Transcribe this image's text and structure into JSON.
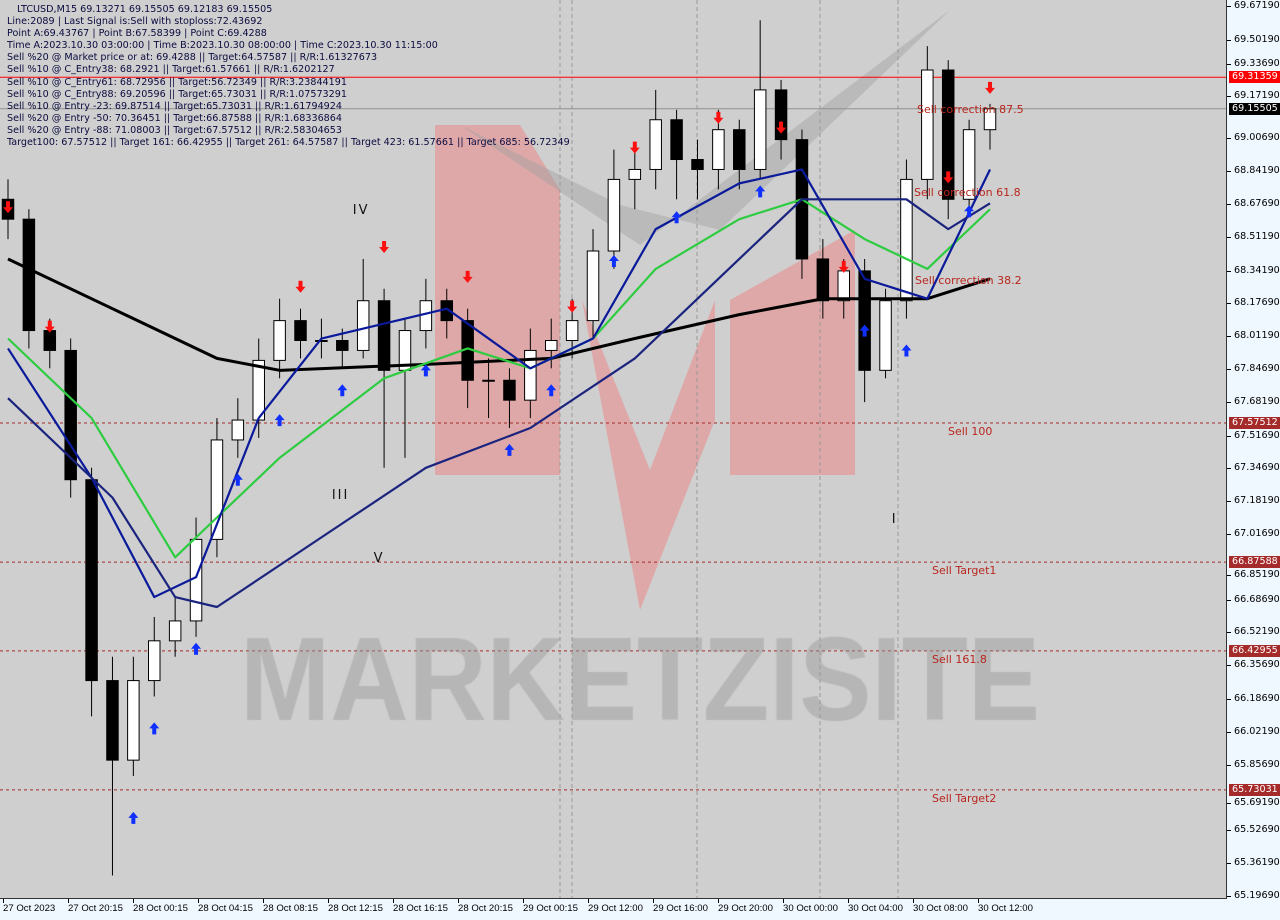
{
  "header": {
    "title": "LTCUSD,M15  69.13271 69.15505 69.12183 69.15505",
    "lines": [
      "Line:2089 | Last Signal is:Sell with stoploss:72.43692",
      "Point A:69.43767 | Point B:67.58399 | Point C:69.4288",
      "Time A:2023.10.30 03:00:00 | Time B:2023.10.30 08:00:00 | Time C:2023.10.30 11:15:00",
      "Sell %20 @ Market price or at: 69.4288 || Target:64.57587 || R/R:1.61327673",
      "Sell %10 @ C_Entry38: 68.2921 || Target:61.57661 || R/R:1.6202127",
      "Sell %10 @ C_Entry61: 68.72956 || Target:56.72349 || R/R:3.23844191",
      "Sell %10 @ C_Entry88: 69.20596 || Target:65.73031 || R/R:1.07573291",
      "Sell %10 @ Entry -23: 69.87514 || Target:65.73031 || R/R:1.61794924",
      "Sell %20 @ Entry -50: 70.36451 || Target:66.87588 || R/R:1.68336864",
      "Sell %20 @ Entry -88: 71.08003 || Target:67.57512 || R/R:2.58304653",
      "Target100: 67.57512 || Target 161: 66.42955 || Target 261: 64.57587 || Target 423: 61.57661 || Target 685: 56.72349"
    ]
  },
  "watermark": "MARKETZISITE",
  "chart_data": {
    "type": "candlestick",
    "symbol": "LTCUSD",
    "timeframe": "M15",
    "ylim": [
      65.1969,
      69.6719
    ],
    "y_ticks": [
      "69.67190",
      "69.50190",
      "69.33690",
      "69.17190",
      "69.00690",
      "68.84190",
      "68.67690",
      "68.51190",
      "68.34190",
      "68.17690",
      "68.01190",
      "67.84690",
      "67.68190",
      "67.51690",
      "67.34690",
      "67.18190",
      "67.01690",
      "66.85190",
      "66.68690",
      "66.52190",
      "66.35690",
      "66.18690",
      "66.02190",
      "65.85690",
      "65.69190",
      "65.52690",
      "65.36190",
      "65.19690"
    ],
    "x_ticks": [
      "27 Oct 2023",
      "27 Oct 20:15",
      "28 Oct 00:15",
      "28 Oct 04:15",
      "28 Oct 08:15",
      "28 Oct 12:15",
      "28 Oct 16:15",
      "28 Oct 20:15",
      "29 Oct 00:15",
      "29 Oct 12:00",
      "29 Oct 16:00",
      "29 Oct 20:00",
      "30 Oct 00:00",
      "30 Oct 04:00",
      "30 Oct 08:00",
      "30 Oct 12:00"
    ],
    "candles_ohlc": [
      [
        68.7,
        68.8,
        68.5,
        68.6
      ],
      [
        68.6,
        68.65,
        67.95,
        68.04
      ],
      [
        68.04,
        68.1,
        67.85,
        67.94
      ],
      [
        67.94,
        68.0,
        67.2,
        67.29
      ],
      [
        67.29,
        67.35,
        66.1,
        66.28
      ],
      [
        66.28,
        66.4,
        65.3,
        65.88
      ],
      [
        65.88,
        66.4,
        65.8,
        66.28
      ],
      [
        66.28,
        66.6,
        66.2,
        66.48
      ],
      [
        66.48,
        66.7,
        66.4,
        66.58
      ],
      [
        66.58,
        67.1,
        66.5,
        66.99
      ],
      [
        66.99,
        67.6,
        66.9,
        67.49
      ],
      [
        67.49,
        67.7,
        67.4,
        67.59
      ],
      [
        67.59,
        68.0,
        67.5,
        67.89
      ],
      [
        67.89,
        68.2,
        67.8,
        68.09
      ],
      [
        68.09,
        68.15,
        67.9,
        67.99
      ],
      [
        67.99,
        68.1,
        67.9,
        67.99
      ],
      [
        67.99,
        68.05,
        67.85,
        67.94
      ],
      [
        67.94,
        68.4,
        67.9,
        68.19
      ],
      [
        68.19,
        68.25,
        67.35,
        67.84
      ],
      [
        67.84,
        68.1,
        67.4,
        68.04
      ],
      [
        68.04,
        68.3,
        67.95,
        68.19
      ],
      [
        68.19,
        68.25,
        68.0,
        68.09
      ],
      [
        68.09,
        68.15,
        67.65,
        67.79
      ],
      [
        67.79,
        67.9,
        67.6,
        67.79
      ],
      [
        67.79,
        67.85,
        67.55,
        67.69
      ],
      [
        67.69,
        68.05,
        67.6,
        67.94
      ],
      [
        67.94,
        68.1,
        67.85,
        67.99
      ],
      [
        67.99,
        68.2,
        67.9,
        68.09
      ],
      [
        68.09,
        68.55,
        68.0,
        68.44
      ],
      [
        68.44,
        68.95,
        68.35,
        68.8
      ],
      [
        68.8,
        68.95,
        68.65,
        68.85
      ],
      [
        68.85,
        69.25,
        68.75,
        69.1
      ],
      [
        69.1,
        69.15,
        68.7,
        68.9
      ],
      [
        68.9,
        69.0,
        68.7,
        68.85
      ],
      [
        68.85,
        69.15,
        68.75,
        69.05
      ],
      [
        69.05,
        69.1,
        68.75,
        68.85
      ],
      [
        68.85,
        69.6,
        68.8,
        69.25
      ],
      [
        69.25,
        69.3,
        68.9,
        69.0
      ],
      [
        69.0,
        69.05,
        68.3,
        68.4
      ],
      [
        68.4,
        68.5,
        68.1,
        68.19
      ],
      [
        68.19,
        68.4,
        68.1,
        68.34
      ],
      [
        68.34,
        68.4,
        67.68,
        67.84
      ],
      [
        67.84,
        68.25,
        67.8,
        68.19
      ],
      [
        68.19,
        68.9,
        68.1,
        68.8
      ],
      [
        68.8,
        69.47,
        68.7,
        69.35
      ],
      [
        69.35,
        69.4,
        68.6,
        68.7
      ],
      [
        68.7,
        69.1,
        68.65,
        69.05
      ],
      [
        69.05,
        69.18,
        68.95,
        69.155
      ]
    ],
    "moving_averages": [
      {
        "color": "#000000",
        "points": [
          [
            0,
            68.4
          ],
          [
            5,
            68.15
          ],
          [
            10,
            67.9
          ],
          [
            13,
            67.84
          ],
          [
            20,
            67.87
          ],
          [
            26,
            67.9
          ],
          [
            30,
            68.0
          ],
          [
            35,
            68.12
          ],
          [
            39,
            68.2
          ],
          [
            44,
            68.2
          ],
          [
            47,
            68.3
          ]
        ]
      },
      {
        "color": "#2ecc40",
        "points": [
          [
            0,
            68.0
          ],
          [
            4,
            67.6
          ],
          [
            8,
            66.9
          ],
          [
            10,
            67.1
          ],
          [
            13,
            67.4
          ],
          [
            18,
            67.8
          ],
          [
            22,
            67.95
          ],
          [
            25,
            67.85
          ],
          [
            28,
            68.0
          ],
          [
            31,
            68.35
          ],
          [
            35,
            68.6
          ],
          [
            38,
            68.7
          ],
          [
            41,
            68.5
          ],
          [
            44,
            68.35
          ],
          [
            47,
            68.65
          ]
        ]
      },
      {
        "color": "#0a1a9a",
        "points": [
          [
            0,
            67.95
          ],
          [
            4,
            67.3
          ],
          [
            7,
            66.7
          ],
          [
            9,
            66.8
          ],
          [
            12,
            67.6
          ],
          [
            15,
            68.0
          ],
          [
            21,
            68.15
          ],
          [
            25,
            67.85
          ],
          [
            28,
            68.0
          ],
          [
            31,
            68.55
          ],
          [
            35,
            68.78
          ],
          [
            38,
            68.85
          ],
          [
            41,
            68.3
          ],
          [
            44,
            68.2
          ],
          [
            47,
            68.85
          ]
        ]
      },
      {
        "color": "#1a237e",
        "points": [
          [
            0,
            67.7
          ],
          [
            5,
            67.2
          ],
          [
            8,
            66.7
          ],
          [
            10,
            66.65
          ],
          [
            15,
            67.0
          ],
          [
            20,
            67.35
          ],
          [
            25,
            67.55
          ],
          [
            30,
            67.9
          ],
          [
            35,
            68.4
          ],
          [
            38,
            68.7
          ],
          [
            43,
            68.7
          ],
          [
            45,
            68.55
          ],
          [
            47,
            68.68
          ]
        ]
      }
    ],
    "signals": [
      [
        0,
        68.65,
        "sell"
      ],
      [
        2,
        68.05,
        "sell"
      ],
      [
        6,
        65.6,
        "buy"
      ],
      [
        7,
        66.05,
        "buy"
      ],
      [
        9,
        66.45,
        "buy"
      ],
      [
        11,
        67.3,
        "buy"
      ],
      [
        13,
        67.6,
        "buy"
      ],
      [
        14,
        68.25,
        "sell"
      ],
      [
        16,
        67.75,
        "buy"
      ],
      [
        18,
        68.45,
        "sell"
      ],
      [
        20,
        67.85,
        "buy"
      ],
      [
        22,
        68.3,
        "sell"
      ],
      [
        24,
        67.45,
        "buy"
      ],
      [
        26,
        67.75,
        "buy"
      ],
      [
        27,
        68.15,
        "sell"
      ],
      [
        29,
        68.4,
        "buy"
      ],
      [
        30,
        68.95,
        "sell"
      ],
      [
        32,
        68.62,
        "buy"
      ],
      [
        34,
        69.1,
        "sell"
      ],
      [
        36,
        68.75,
        "buy"
      ],
      [
        37,
        69.05,
        "sell"
      ],
      [
        40,
        68.35,
        "sell"
      ],
      [
        41,
        68.05,
        "buy"
      ],
      [
        43,
        67.95,
        "buy"
      ],
      [
        45,
        68.8,
        "sell"
      ],
      [
        46,
        68.65,
        "buy"
      ],
      [
        47,
        69.25,
        "sell"
      ]
    ],
    "levels": [
      {
        "price": "69.31359",
        "color": "#ff0000",
        "style": "solid",
        "label": ""
      },
      {
        "price": "69.15505",
        "color": "#909090",
        "style": "solid",
        "label": ""
      },
      {
        "price": "67.57512",
        "color": "#a52a2a",
        "style": "dashed",
        "label": "Sell 100"
      },
      {
        "price": "66.87588",
        "color": "#a52a2a",
        "style": "dashed",
        "label": "Sell Target1"
      },
      {
        "price": "66.42955",
        "color": "#a52a2a",
        "style": "dashed",
        "label": "Sell 161.8"
      },
      {
        "price": "65.73031",
        "color": "#a52a2a",
        "style": "dashed",
        "label": "Sell Target2"
      }
    ],
    "corrections": [
      {
        "price": 69.15,
        "label": "Sell correction 87.5"
      },
      {
        "price": 68.73,
        "label": "Sell correction 61.8"
      },
      {
        "price": 68.29,
        "label": "Sell correction 38.2"
      }
    ],
    "wave_labels": [
      {
        "index": 16.5,
        "price": 68.68,
        "label": "IV"
      },
      {
        "index": 15.5,
        "price": 67.25,
        "label": "III"
      },
      {
        "index": 17.5,
        "price": 66.93,
        "label": "V"
      },
      {
        "index": 42.3,
        "price": 67.13,
        "label": "I"
      }
    ],
    "current_price": {
      "value": "69.15505",
      "color": "#000000"
    },
    "colors": {
      "bull": "#000000",
      "bear": "#000000",
      "background": "#cfcfcf"
    }
  }
}
